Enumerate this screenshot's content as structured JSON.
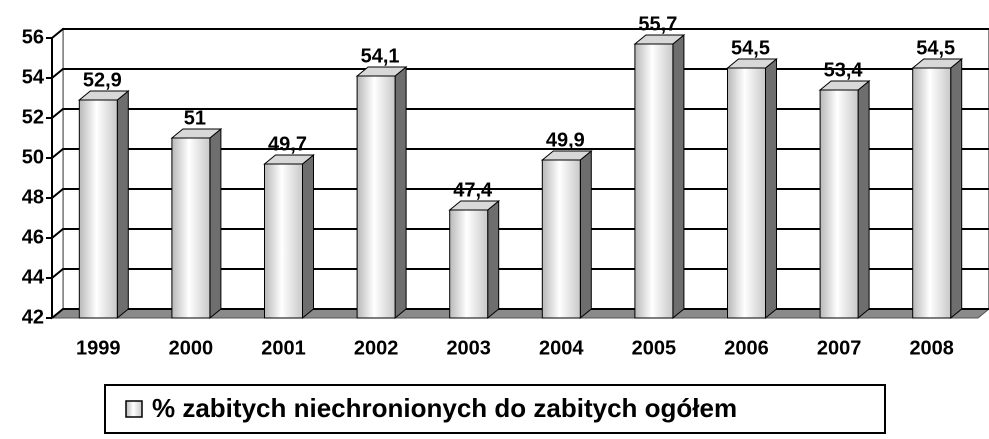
{
  "chart_data": {
    "type": "bar3d",
    "categories": [
      "1999",
      "2000",
      "2001",
      "2002",
      "2003",
      "2004",
      "2005",
      "2006",
      "2007",
      "2008"
    ],
    "series": [
      {
        "name": "% zabitych niechronionych do zabitych ogółem",
        "color": "#ffffff",
        "values": [
          52.9,
          51,
          49.7,
          54.1,
          47.4,
          49.9,
          55.7,
          54.5,
          53.4,
          54.5
        ],
        "value_labels": [
          "52,9",
          "51",
          "49,7",
          "54,1",
          "47,4",
          "49,9",
          "55,7",
          "54,5",
          "53,4",
          "54,5"
        ]
      }
    ],
    "ylim": [
      42,
      56
    ],
    "yticks": [
      42,
      44,
      46,
      48,
      50,
      52,
      54,
      56
    ],
    "grid": true,
    "legend": "bottom"
  }
}
